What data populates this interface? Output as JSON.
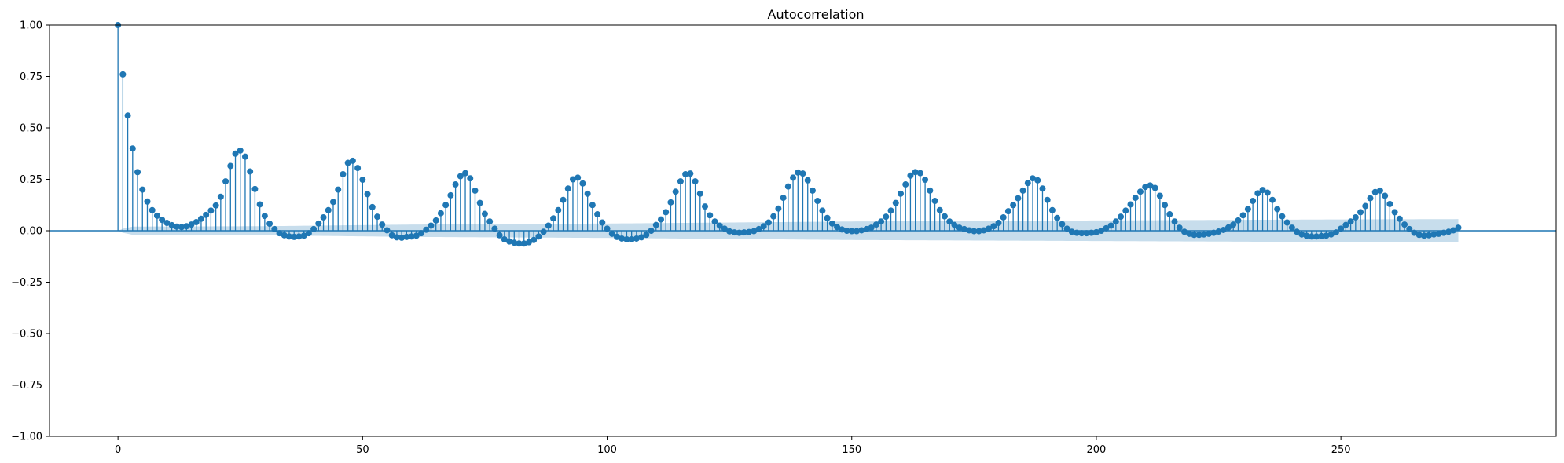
{
  "chart_data": {
    "type": "stem",
    "title": "Autocorrelation",
    "xlabel": "",
    "ylabel": "",
    "xlim": [
      -14,
      294
    ],
    "ylim": [
      -1.0,
      1.0
    ],
    "xticks": [
      0,
      50,
      100,
      150,
      200,
      250
    ],
    "xtick_labels": [
      "0",
      "50",
      "100",
      "150",
      "200",
      "250"
    ],
    "yticks": [
      -1.0,
      -0.75,
      -0.5,
      -0.25,
      0.0,
      0.25,
      0.5,
      0.75,
      1.0
    ],
    "ytick_labels": [
      "−1.00",
      "−0.75",
      "−0.50",
      "−0.25",
      "0.00",
      "0.25",
      "0.50",
      "0.75",
      "1.00"
    ],
    "grid": false,
    "colors": {
      "stem": "#1f77b4",
      "confint": "#1f77b4",
      "zero_line": "#1f77b4"
    },
    "lags": {
      "start": 0,
      "step": 1,
      "values": [
        1.0,
        0.76,
        0.56,
        0.4,
        0.285,
        0.2,
        0.142,
        0.1,
        0.073,
        0.053,
        0.038,
        0.027,
        0.02,
        0.018,
        0.022,
        0.03,
        0.042,
        0.058,
        0.077,
        0.098,
        0.123,
        0.165,
        0.24,
        0.315,
        0.375,
        0.39,
        0.36,
        0.288,
        0.203,
        0.128,
        0.072,
        0.034,
        0.008,
        -0.012,
        -0.022,
        -0.028,
        -0.03,
        -0.028,
        -0.024,
        -0.012,
        0.008,
        0.035,
        0.065,
        0.1,
        0.14,
        0.2,
        0.275,
        0.33,
        0.34,
        0.305,
        0.248,
        0.178,
        0.115,
        0.068,
        0.03,
        0.002,
        -0.022,
        -0.032,
        -0.034,
        -0.03,
        -0.028,
        -0.024,
        -0.012,
        0.005,
        0.025,
        0.05,
        0.085,
        0.125,
        0.172,
        0.225,
        0.265,
        0.28,
        0.255,
        0.195,
        0.135,
        0.082,
        0.045,
        0.01,
        -0.022,
        -0.042,
        -0.052,
        -0.058,
        -0.062,
        -0.062,
        -0.056,
        -0.045,
        -0.028,
        -0.005,
        0.025,
        0.06,
        0.1,
        0.15,
        0.205,
        0.25,
        0.258,
        0.23,
        0.18,
        0.125,
        0.08,
        0.04,
        0.01,
        -0.015,
        -0.03,
        -0.038,
        -0.042,
        -0.042,
        -0.038,
        -0.032,
        -0.02,
        0.0,
        0.028,
        0.055,
        0.09,
        0.138,
        0.19,
        0.24,
        0.275,
        0.278,
        0.24,
        0.18,
        0.118,
        0.075,
        0.045,
        0.025,
        0.01,
        -0.003,
        -0.008,
        -0.01,
        -0.008,
        -0.006,
        -0.002,
        0.008,
        0.022,
        0.04,
        0.07,
        0.108,
        0.16,
        0.215,
        0.258,
        0.283,
        0.278,
        0.245,
        0.195,
        0.145,
        0.098,
        0.062,
        0.035,
        0.018,
        0.006,
        0.0,
        -0.002,
        -0.002,
        0.002,
        0.008,
        0.015,
        0.03,
        0.045,
        0.068,
        0.098,
        0.135,
        0.18,
        0.225,
        0.268,
        0.285,
        0.28,
        0.248,
        0.195,
        0.145,
        0.1,
        0.07,
        0.045,
        0.028,
        0.015,
        0.008,
        0.002,
        -0.002,
        -0.002,
        0.002,
        0.01,
        0.022,
        0.038,
        0.065,
        0.095,
        0.125,
        0.158,
        0.195,
        0.232,
        0.255,
        0.245,
        0.205,
        0.15,
        0.1,
        0.062,
        0.032,
        0.01,
        -0.005,
        -0.01,
        -0.012,
        -0.012,
        -0.01,
        -0.007,
        0.0,
        0.012,
        0.025,
        0.045,
        0.068,
        0.098,
        0.128,
        0.16,
        0.19,
        0.213,
        0.22,
        0.208,
        0.17,
        0.125,
        0.08,
        0.045,
        0.015,
        -0.005,
        -0.015,
        -0.02,
        -0.02,
        -0.018,
        -0.015,
        -0.01,
        -0.004,
        0.004,
        0.016,
        0.03,
        0.05,
        0.075,
        0.105,
        0.145,
        0.182,
        0.198,
        0.185,
        0.15,
        0.105,
        0.07,
        0.04,
        0.015,
        -0.005,
        -0.018,
        -0.025,
        -0.028,
        -0.028,
        -0.026,
        -0.024,
        -0.018,
        -0.008,
        0.01,
        0.028,
        0.045,
        0.065,
        0.09,
        0.12,
        0.158,
        0.188,
        0.195,
        0.17,
        0.13,
        0.09,
        0.058,
        0.03,
        0.008,
        -0.01,
        -0.02,
        -0.024,
        -0.022,
        -0.018,
        -0.015,
        -0.01,
        -0.005,
        0.002,
        0.015
      ]
    },
    "confint_band": {
      "description_values": "upper half-width of 95% confidence band around zero at each lag",
      "start": 0,
      "halfwidth_points": [
        [
          0,
          0.0
        ],
        [
          1,
          0.01
        ],
        [
          3,
          0.02
        ],
        [
          30,
          0.022
        ],
        [
          60,
          0.03
        ],
        [
          100,
          0.035
        ],
        [
          150,
          0.045
        ],
        [
          200,
          0.05
        ],
        [
          250,
          0.055
        ],
        [
          280,
          0.057
        ]
      ]
    }
  }
}
